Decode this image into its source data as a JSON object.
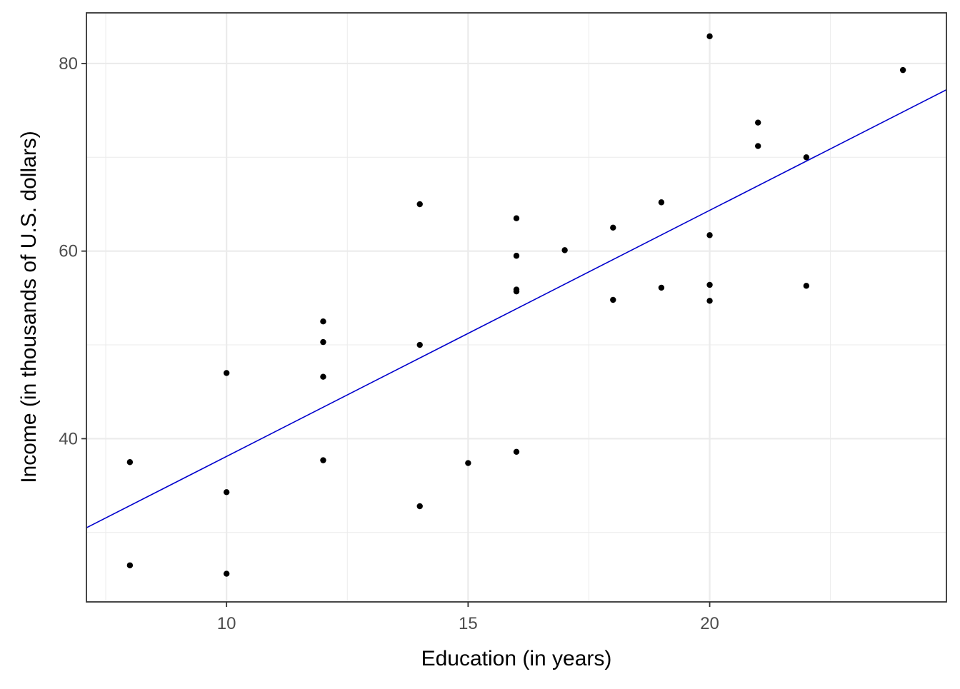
{
  "chart_data": {
    "type": "scatter",
    "title": "",
    "xlabel": "Education (in years)",
    "ylabel": "Income (in thousands of U.S. dollars)",
    "xlim": [
      7.1,
      24.9
    ],
    "ylim": [
      22.6,
      85.4
    ],
    "x_ticks": [
      10,
      15,
      20
    ],
    "y_ticks": [
      40,
      60,
      80
    ],
    "grid": true,
    "legend": "none",
    "points": [
      {
        "x": 8,
        "y": 37.5
      },
      {
        "x": 8,
        "y": 26.5
      },
      {
        "x": 10,
        "y": 47.0
      },
      {
        "x": 10,
        "y": 34.3
      },
      {
        "x": 10,
        "y": 25.6
      },
      {
        "x": 12,
        "y": 52.5
      },
      {
        "x": 12,
        "y": 50.3
      },
      {
        "x": 12,
        "y": 46.6
      },
      {
        "x": 12,
        "y": 37.7
      },
      {
        "x": 14,
        "y": 65.0
      },
      {
        "x": 14,
        "y": 50.0
      },
      {
        "x": 14,
        "y": 32.8
      },
      {
        "x": 15,
        "y": 37.4
      },
      {
        "x": 16,
        "y": 63.5
      },
      {
        "x": 16,
        "y": 59.5
      },
      {
        "x": 16,
        "y": 55.9
      },
      {
        "x": 16,
        "y": 55.7
      },
      {
        "x": 16,
        "y": 38.6
      },
      {
        "x": 17,
        "y": 60.1
      },
      {
        "x": 18,
        "y": 62.5
      },
      {
        "x": 18,
        "y": 54.8
      },
      {
        "x": 19,
        "y": 65.2
      },
      {
        "x": 19,
        "y": 56.1
      },
      {
        "x": 20,
        "y": 82.9
      },
      {
        "x": 20,
        "y": 61.7
      },
      {
        "x": 20,
        "y": 56.4
      },
      {
        "x": 20,
        "y": 54.7
      },
      {
        "x": 21,
        "y": 73.7
      },
      {
        "x": 21,
        "y": 71.2
      },
      {
        "x": 22,
        "y": 70.0
      },
      {
        "x": 22,
        "y": 56.3
      },
      {
        "x": 24,
        "y": 79.3
      }
    ],
    "fit_line": {
      "color": "#0000cc",
      "x": [
        7.1,
        24.9
      ],
      "y": [
        30.5,
        77.2
      ]
    },
    "point_color": "#000000",
    "grid_color": "#ebebeb",
    "panel_border_color": "#333333"
  }
}
